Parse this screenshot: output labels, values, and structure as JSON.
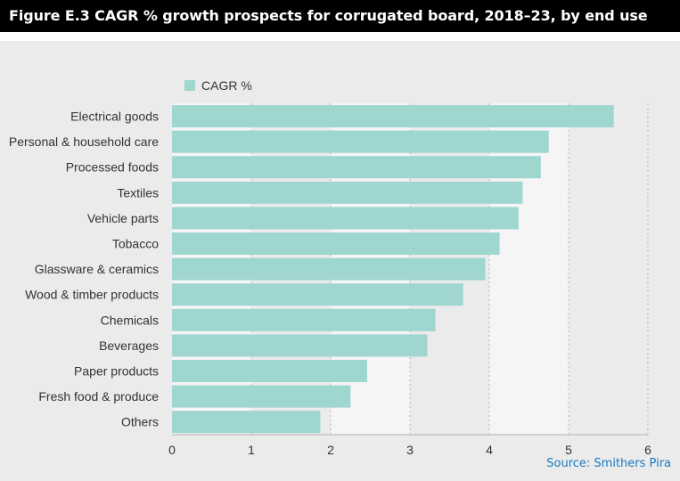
{
  "title": "Figure E.3 CAGR % growth prospects for corrugated board, 2018–23, by end use",
  "source": "Source: Smithers Pira",
  "chart_data": {
    "type": "bar",
    "orientation": "horizontal",
    "categories": [
      "Electrical goods",
      "Personal & household care",
      "Processed foods",
      "Textiles",
      "Vehicle parts",
      "Tobacco",
      "Glassware & ceramics",
      "Wood & timber products",
      "Chemicals",
      "Beverages",
      "Paper products",
      "Fresh food & produce",
      "Others"
    ],
    "series": [
      {
        "name": "CAGR %",
        "values": [
          5.57,
          4.75,
          4.65,
          4.42,
          4.37,
          4.13,
          3.95,
          3.67,
          3.32,
          3.22,
          2.46,
          2.25,
          1.87
        ]
      }
    ],
    "xlim": [
      0,
      6
    ],
    "xticks": [
      "0",
      "1",
      "2",
      "3",
      "4",
      "5",
      "6"
    ],
    "xlabel": "",
    "ylabel": "",
    "legend": "top-left",
    "grid": "vertical dotted",
    "colors": {
      "bar": "#a0d6d0",
      "plot_background": "#ebebeb",
      "alt_band": "#f5f5f5",
      "title_bar": "#000000",
      "source_text": "#1a79bf"
    }
  }
}
